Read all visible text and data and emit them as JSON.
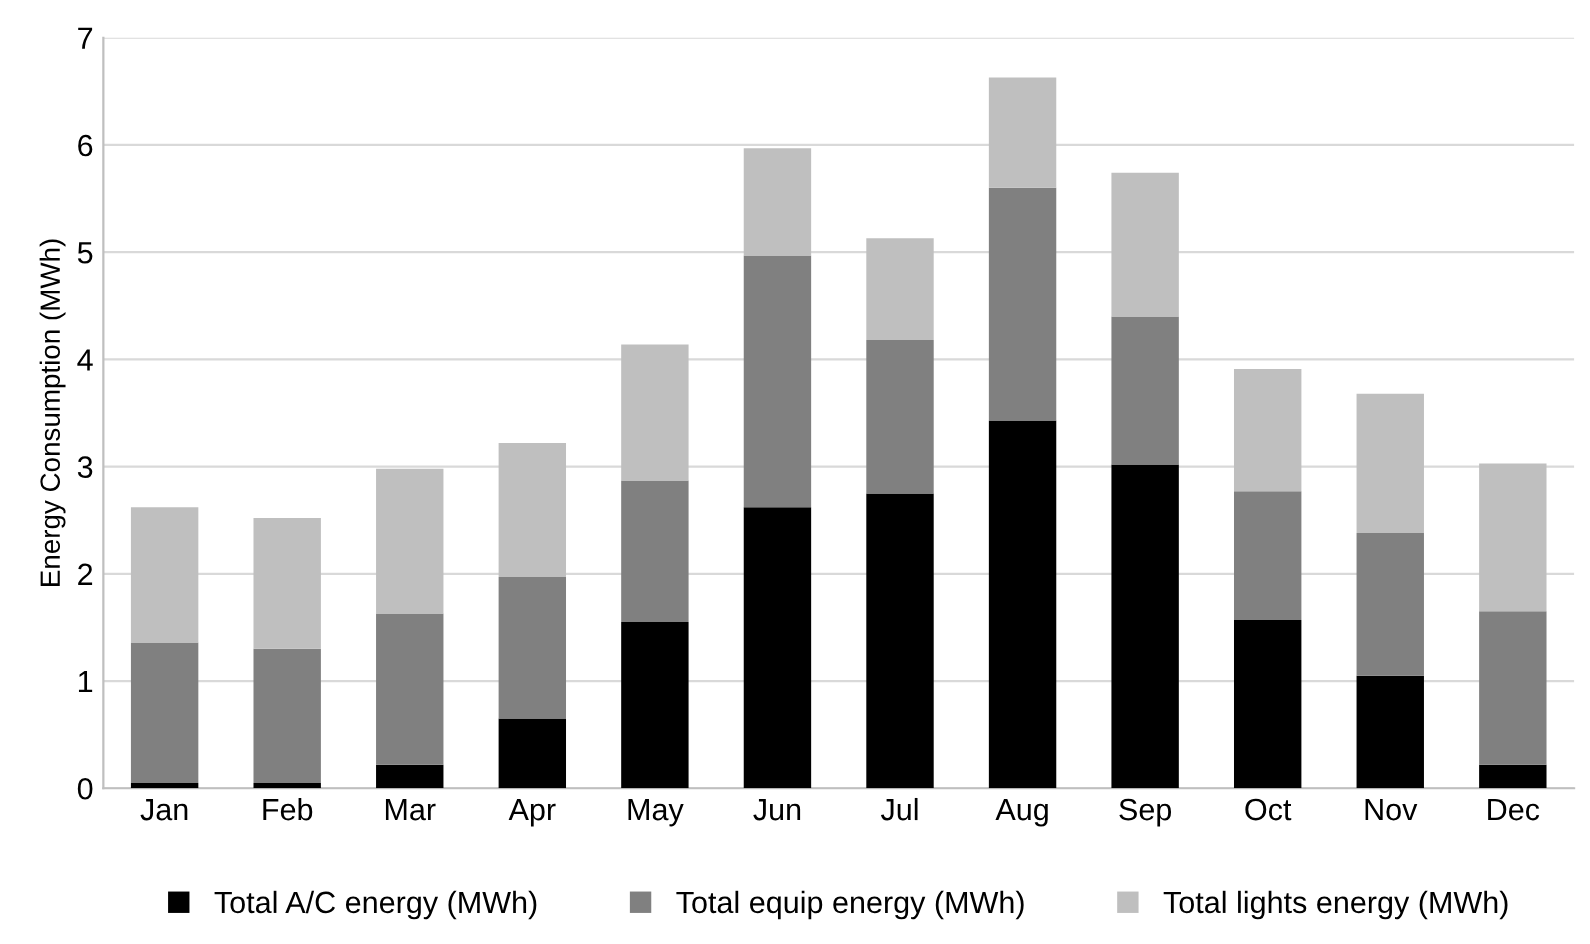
{
  "chart_data": {
    "type": "bar",
    "stacked": true,
    "ylabel": "Energy Consumption (MWh)",
    "categories": [
      "Jan",
      "Feb",
      "Mar",
      "Apr",
      "May",
      "Jun",
      "Jul",
      "Aug",
      "Sep",
      "Oct",
      "Nov",
      "Dec"
    ],
    "series": [
      {
        "name": "Total A/C energy (MWh)",
        "color": "#000000",
        "values": [
          0.05,
          0.05,
          0.22,
          0.65,
          1.55,
          2.62,
          2.75,
          3.43,
          3.02,
          1.57,
          1.05,
          0.22
        ]
      },
      {
        "name": "Total equip energy (MWh)",
        "color": "#808080",
        "values": [
          1.31,
          1.25,
          1.41,
          1.32,
          1.32,
          2.35,
          1.43,
          2.17,
          1.38,
          1.2,
          1.33,
          1.43
        ]
      },
      {
        "name": "Total lights energy (MWh)",
        "color": "#bfbfbf",
        "values": [
          1.26,
          1.22,
          1.35,
          1.25,
          1.27,
          1.0,
          0.95,
          1.03,
          1.34,
          1.14,
          1.3,
          1.38
        ]
      }
    ],
    "ylim": [
      0,
      7
    ],
    "yticks": [
      0,
      1,
      2,
      3,
      4,
      5,
      6,
      7
    ],
    "grid": "y",
    "legend": "bottom"
  }
}
